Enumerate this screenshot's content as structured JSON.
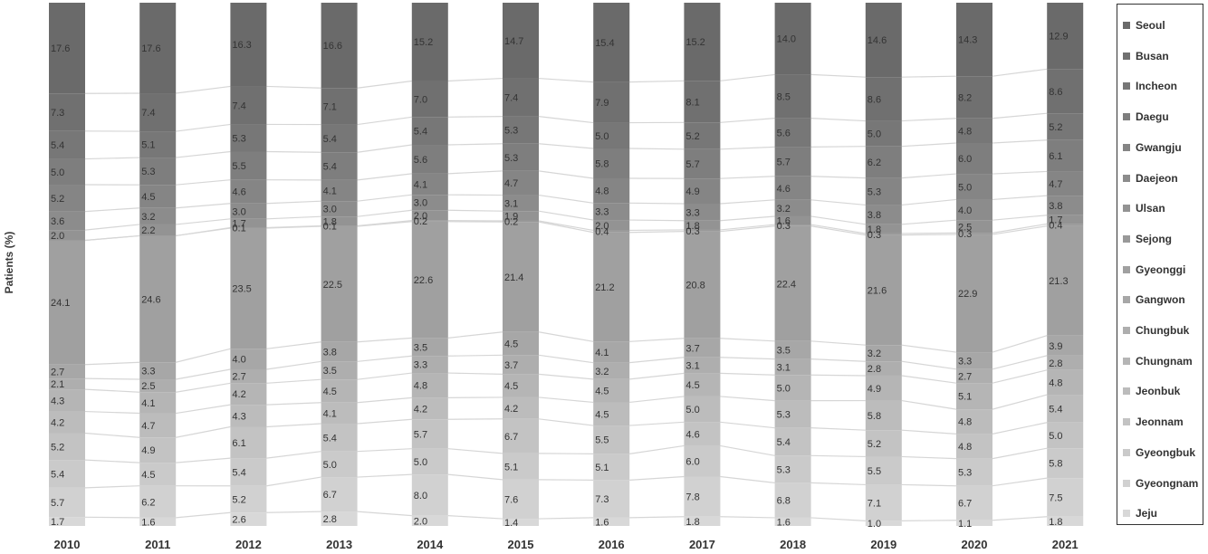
{
  "chart_data": {
    "type": "bar",
    "stacked": true,
    "percent": true,
    "ylabel": "Patients (%)",
    "xlabel": "",
    "categories": [
      "2010",
      "2011",
      "2012",
      "2013",
      "2014",
      "2015",
      "2016",
      "2017",
      "2018",
      "2019",
      "2020",
      "2021"
    ],
    "series": [
      {
        "name": "Seoul",
        "color": "#6a6a6a",
        "values": [
          17.6,
          17.6,
          16.3,
          16.6,
          15.2,
          14.7,
          15.4,
          15.2,
          14.0,
          14.6,
          14.3,
          12.9
        ]
      },
      {
        "name": "Busan",
        "color": "#707070",
        "values": [
          7.3,
          7.4,
          7.4,
          7.1,
          7.0,
          7.4,
          7.9,
          8.1,
          8.5,
          8.6,
          8.2,
          8.6
        ]
      },
      {
        "name": "Incheon",
        "color": "#777777",
        "values": [
          5.4,
          5.1,
          5.3,
          5.4,
          5.4,
          5.3,
          5.0,
          5.2,
          5.6,
          5.0,
          4.8,
          5.2
        ]
      },
      {
        "name": "Daegu",
        "color": "#7e7e7e",
        "values": [
          5.0,
          5.3,
          5.5,
          5.4,
          5.6,
          5.3,
          5.8,
          5.7,
          5.7,
          6.2,
          6.0,
          6.1
        ]
      },
      {
        "name": "Gwangju",
        "color": "#858585",
        "values": [
          5.2,
          4.5,
          4.6,
          4.1,
          4.1,
          4.7,
          4.8,
          4.9,
          4.6,
          5.3,
          5.0,
          4.7
        ]
      },
      {
        "name": "Daejeon",
        "color": "#8c8c8c",
        "values": [
          3.6,
          3.2,
          3.0,
          3.0,
          3.0,
          3.1,
          3.3,
          3.3,
          3.2,
          3.8,
          4.0,
          3.8
        ]
      },
      {
        "name": "Ulsan",
        "color": "#939393",
        "values": [
          2.0,
          2.2,
          1.7,
          1.8,
          2.0,
          1.9,
          2.0,
          1.8,
          1.6,
          1.8,
          2.5,
          1.7
        ]
      },
      {
        "name": "Sejong",
        "color": "#999999",
        "values": [
          0,
          0,
          0.1,
          0.1,
          0.2,
          0.2,
          0.4,
          0.3,
          0.3,
          0.3,
          0.3,
          0.4
        ]
      },
      {
        "name": "Gyeonggi",
        "color": "#a0a0a0",
        "values": [
          24.1,
          24.6,
          23.5,
          22.5,
          22.6,
          21.4,
          21.2,
          20.8,
          22.4,
          21.6,
          22.9,
          21.3
        ]
      },
      {
        "name": "Gangwon",
        "color": "#a7a7a7",
        "values": [
          2.7,
          3.3,
          4.0,
          3.8,
          3.5,
          4.5,
          4.1,
          3.7,
          3.5,
          3.2,
          3.3,
          3.9
        ]
      },
      {
        "name": "Chungbuk",
        "color": "#aeaeae",
        "values": [
          2.1,
          2.5,
          2.7,
          3.5,
          3.3,
          3.7,
          3.2,
          3.1,
          3.1,
          2.8,
          2.7,
          2.8
        ]
      },
      {
        "name": "Chungnam",
        "color": "#b5b5b5",
        "values": [
          4.3,
          4.1,
          4.2,
          4.5,
          4.8,
          4.5,
          4.5,
          4.5,
          5.0,
          4.9,
          5.1,
          4.8
        ]
      },
      {
        "name": "Jeonbuk",
        "color": "#bcbcbc",
        "values": [
          4.2,
          4.7,
          4.3,
          4.1,
          4.2,
          4.2,
          4.5,
          5.0,
          5.3,
          5.8,
          4.8,
          5.4
        ]
      },
      {
        "name": "Jeonnam",
        "color": "#c3c3c3",
        "values": [
          5.2,
          4.9,
          6.1,
          5.4,
          5.7,
          6.7,
          5.5,
          4.6,
          5.4,
          5.2,
          4.8,
          5.0
        ]
      },
      {
        "name": "Gyeongbuk",
        "color": "#cacaca",
        "values": [
          5.4,
          4.5,
          5.4,
          5.0,
          5.0,
          5.1,
          5.1,
          6.0,
          5.3,
          5.5,
          5.3,
          5.8
        ]
      },
      {
        "name": "Gyeongnam",
        "color": "#d1d1d1",
        "values": [
          5.7,
          6.2,
          5.2,
          6.7,
          8.0,
          7.6,
          7.3,
          7.8,
          6.8,
          7.1,
          6.7,
          7.5
        ]
      },
      {
        "name": "Jeju",
        "color": "#d8d8d8",
        "values": [
          1.7,
          1.6,
          2.6,
          2.8,
          2.0,
          1.4,
          1.6,
          1.8,
          1.6,
          1.0,
          1.1,
          1.8
        ]
      }
    ],
    "legend": "right",
    "grid": false
  }
}
